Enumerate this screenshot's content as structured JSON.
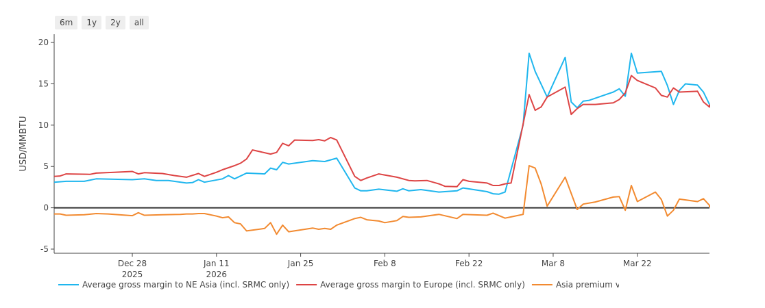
{
  "range_selector": {
    "buttons": [
      "6m",
      "1y",
      "2y",
      "all"
    ]
  },
  "chart_data": {
    "type": "line",
    "title": "",
    "xlabel": "",
    "ylabel": "USD/MMBTU",
    "x_tick_labels": [
      {
        "date": "2025-12-28",
        "label": "Dec 28",
        "sublabel": "2025"
      },
      {
        "date": "2026-01-11",
        "label": "Jan 11",
        "sublabel": "2026"
      },
      {
        "date": "2026-01-25",
        "label": "Jan 25",
        "sublabel": ""
      },
      {
        "date": "2026-02-08",
        "label": "Feb 8",
        "sublabel": ""
      },
      {
        "date": "2026-02-22",
        "label": "Feb 22",
        "sublabel": ""
      },
      {
        "date": "2026-03-08",
        "label": "Mar 8",
        "sublabel": ""
      },
      {
        "date": "2026-03-22",
        "label": "Mar 22",
        "sublabel": ""
      }
    ],
    "y_ticks": [
      -5,
      0,
      5,
      10,
      15,
      20
    ],
    "xlim": [
      "2025-12-15",
      "2026-04-03"
    ],
    "ylim": [
      -5.5,
      21
    ],
    "zero_line": true,
    "grid": false,
    "legend_position": "bottom",
    "series": [
      {
        "name": "Average gross margin to NE Asia (incl. SRMC only)",
        "color": "#1fb6ee",
        "points": [
          [
            "2025-12-15",
            3.1
          ],
          [
            "2025-12-17",
            3.2
          ],
          [
            "2025-12-20",
            3.2
          ],
          [
            "2025-12-22",
            3.5
          ],
          [
            "2025-12-25",
            3.45
          ],
          [
            "2025-12-28",
            3.4
          ],
          [
            "2025-12-30",
            3.5
          ],
          [
            "2026-01-01",
            3.3
          ],
          [
            "2026-01-03",
            3.3
          ],
          [
            "2026-01-06",
            3.0
          ],
          [
            "2026-01-07",
            3.05
          ],
          [
            "2026-01-08",
            3.4
          ],
          [
            "2026-01-09",
            3.1
          ],
          [
            "2026-01-12",
            3.5
          ],
          [
            "2026-01-13",
            3.9
          ],
          [
            "2026-01-14",
            3.5
          ],
          [
            "2026-01-16",
            4.2
          ],
          [
            "2026-01-19",
            4.1
          ],
          [
            "2026-01-20",
            4.8
          ],
          [
            "2026-01-21",
            4.6
          ],
          [
            "2026-01-22",
            5.5
          ],
          [
            "2026-01-23",
            5.3
          ],
          [
            "2026-01-27",
            5.7
          ],
          [
            "2026-01-29",
            5.6
          ],
          [
            "2026-01-31",
            6.0
          ],
          [
            "2026-02-03",
            2.4
          ],
          [
            "2026-02-04",
            2.05
          ],
          [
            "2026-02-05",
            2.05
          ],
          [
            "2026-02-07",
            2.25
          ],
          [
            "2026-02-10",
            2.0
          ],
          [
            "2026-02-11",
            2.3
          ],
          [
            "2026-02-12",
            2.05
          ],
          [
            "2026-02-14",
            2.2
          ],
          [
            "2026-02-17",
            1.9
          ],
          [
            "2026-02-20",
            2.05
          ],
          [
            "2026-02-21",
            2.4
          ],
          [
            "2026-02-25",
            1.95
          ],
          [
            "2026-02-26",
            1.7
          ],
          [
            "2026-02-27",
            1.65
          ],
          [
            "2026-02-28",
            1.9
          ],
          [
            "2026-03-03",
            10.0
          ],
          [
            "2026-03-04",
            18.7
          ],
          [
            "2026-03-05",
            16.5
          ],
          [
            "2026-03-07",
            13.4
          ],
          [
            "2026-03-10",
            18.2
          ],
          [
            "2026-03-11",
            12.8
          ],
          [
            "2026-03-12",
            12.1
          ],
          [
            "2026-03-13",
            12.9
          ],
          [
            "2026-03-14",
            13.0
          ],
          [
            "2026-03-18",
            14.0
          ],
          [
            "2026-03-19",
            14.4
          ],
          [
            "2026-03-20",
            13.5
          ],
          [
            "2026-03-21",
            18.7
          ],
          [
            "2026-03-22",
            16.3
          ],
          [
            "2026-03-26",
            16.5
          ],
          [
            "2026-03-27",
            14.8
          ],
          [
            "2026-03-28",
            12.5
          ],
          [
            "2026-03-29",
            14.2
          ],
          [
            "2026-03-30",
            15.0
          ],
          [
            "2026-04-01",
            14.85
          ],
          [
            "2026-04-02",
            14.0
          ],
          [
            "2026-04-03",
            12.5
          ]
        ]
      },
      {
        "name": "Average gross margin to Europe (incl. SRMC only)",
        "color": "#dd4444",
        "points": [
          [
            "2025-12-15",
            3.8
          ],
          [
            "2025-12-16",
            3.85
          ],
          [
            "2025-12-17",
            4.1
          ],
          [
            "2025-12-21",
            4.05
          ],
          [
            "2025-12-22",
            4.2
          ],
          [
            "2025-12-25",
            4.3
          ],
          [
            "2025-12-28",
            4.4
          ],
          [
            "2025-12-29",
            4.1
          ],
          [
            "2025-12-30",
            4.25
          ],
          [
            "2026-01-02",
            4.15
          ],
          [
            "2026-01-04",
            3.9
          ],
          [
            "2026-01-06",
            3.7
          ],
          [
            "2026-01-08",
            4.15
          ],
          [
            "2026-01-09",
            3.8
          ],
          [
            "2026-01-11",
            4.3
          ],
          [
            "2026-01-12",
            4.6
          ],
          [
            "2026-01-14",
            5.1
          ],
          [
            "2026-01-15",
            5.4
          ],
          [
            "2026-01-16",
            5.9
          ],
          [
            "2026-01-17",
            7.0
          ],
          [
            "2026-01-20",
            6.5
          ],
          [
            "2026-01-21",
            6.7
          ],
          [
            "2026-01-22",
            7.8
          ],
          [
            "2026-01-23",
            7.5
          ],
          [
            "2026-01-24",
            8.2
          ],
          [
            "2026-01-27",
            8.15
          ],
          [
            "2026-01-28",
            8.25
          ],
          [
            "2026-01-29",
            8.1
          ],
          [
            "2026-01-30",
            8.5
          ],
          [
            "2026-01-31",
            8.2
          ],
          [
            "2026-02-03",
            3.8
          ],
          [
            "2026-02-04",
            3.3
          ],
          [
            "2026-02-05",
            3.6
          ],
          [
            "2026-02-07",
            4.1
          ],
          [
            "2026-02-10",
            3.7
          ],
          [
            "2026-02-12",
            3.3
          ],
          [
            "2026-02-13",
            3.25
          ],
          [
            "2026-02-15",
            3.3
          ],
          [
            "2026-02-17",
            2.9
          ],
          [
            "2026-02-18",
            2.6
          ],
          [
            "2026-02-20",
            2.55
          ],
          [
            "2026-02-21",
            3.4
          ],
          [
            "2026-02-22",
            3.2
          ],
          [
            "2026-02-25",
            3.0
          ],
          [
            "2026-02-26",
            2.7
          ],
          [
            "2026-02-27",
            2.7
          ],
          [
            "2026-02-28",
            2.9
          ],
          [
            "2026-03-01",
            3.0
          ],
          [
            "2026-03-04",
            13.7
          ],
          [
            "2026-03-05",
            11.8
          ],
          [
            "2026-03-06",
            12.2
          ],
          [
            "2026-03-07",
            13.4
          ],
          [
            "2026-03-10",
            14.6
          ],
          [
            "2026-03-11",
            11.3
          ],
          [
            "2026-03-12",
            12.0
          ],
          [
            "2026-03-13",
            12.5
          ],
          [
            "2026-03-15",
            12.5
          ],
          [
            "2026-03-18",
            12.7
          ],
          [
            "2026-03-19",
            13.1
          ],
          [
            "2026-03-20",
            13.9
          ],
          [
            "2026-03-21",
            16.0
          ],
          [
            "2026-03-22",
            15.4
          ],
          [
            "2026-03-25",
            14.5
          ],
          [
            "2026-03-26",
            13.6
          ],
          [
            "2026-03-27",
            13.4
          ],
          [
            "2026-03-28",
            14.5
          ],
          [
            "2026-03-29",
            14.0
          ],
          [
            "2026-04-01",
            14.1
          ],
          [
            "2026-04-02",
            12.8
          ],
          [
            "2026-04-03",
            12.2
          ],
          [
            "2026-04-03",
            12.5
          ]
        ]
      },
      {
        "name": "Asia premium vs Europe",
        "color": "#f28a30",
        "points": [
          [
            "2025-12-15",
            -0.75
          ],
          [
            "2025-12-16",
            -0.75
          ],
          [
            "2025-12-17",
            -0.9
          ],
          [
            "2025-12-20",
            -0.85
          ],
          [
            "2025-12-22",
            -0.7
          ],
          [
            "2025-12-24",
            -0.75
          ],
          [
            "2025-12-28",
            -0.95
          ],
          [
            "2025-12-29",
            -0.6
          ],
          [
            "2025-12-30",
            -0.9
          ],
          [
            "2026-01-02",
            -0.85
          ],
          [
            "2026-01-05",
            -0.8
          ],
          [
            "2026-01-06",
            -0.75
          ],
          [
            "2026-01-07",
            -0.75
          ],
          [
            "2026-01-08",
            -0.7
          ],
          [
            "2026-01-09",
            -0.7
          ],
          [
            "2026-01-11",
            -1.0
          ],
          [
            "2026-01-12",
            -1.2
          ],
          [
            "2026-01-13",
            -1.1
          ],
          [
            "2026-01-14",
            -1.8
          ],
          [
            "2026-01-15",
            -1.95
          ],
          [
            "2026-01-16",
            -2.8
          ],
          [
            "2026-01-19",
            -2.5
          ],
          [
            "2026-01-20",
            -1.8
          ],
          [
            "2026-01-21",
            -3.2
          ],
          [
            "2026-01-22",
            -2.1
          ],
          [
            "2026-01-23",
            -2.9
          ],
          [
            "2026-01-27",
            -2.45
          ],
          [
            "2026-01-28",
            -2.6
          ],
          [
            "2026-01-29",
            -2.5
          ],
          [
            "2026-01-30",
            -2.6
          ],
          [
            "2026-01-31",
            -2.1
          ],
          [
            "2026-02-03",
            -1.3
          ],
          [
            "2026-02-04",
            -1.15
          ],
          [
            "2026-02-05",
            -1.45
          ],
          [
            "2026-02-07",
            -1.6
          ],
          [
            "2026-02-08",
            -1.8
          ],
          [
            "2026-02-10",
            -1.55
          ],
          [
            "2026-02-11",
            -1.05
          ],
          [
            "2026-02-12",
            -1.15
          ],
          [
            "2026-02-14",
            -1.1
          ],
          [
            "2026-02-17",
            -0.8
          ],
          [
            "2026-02-20",
            -1.3
          ],
          [
            "2026-02-21",
            -0.8
          ],
          [
            "2026-02-25",
            -0.9
          ],
          [
            "2026-02-26",
            -0.65
          ],
          [
            "2026-02-28",
            -1.25
          ],
          [
            "2026-03-01",
            -1.1
          ],
          [
            "2026-03-03",
            -0.8
          ],
          [
            "2026-03-04",
            5.1
          ],
          [
            "2026-03-05",
            4.8
          ],
          [
            "2026-03-06",
            2.9
          ],
          [
            "2026-03-07",
            0.2
          ],
          [
            "2026-03-10",
            3.7
          ],
          [
            "2026-03-12",
            -0.2
          ],
          [
            "2026-03-13",
            0.45
          ],
          [
            "2026-03-15",
            0.7
          ],
          [
            "2026-03-18",
            1.3
          ],
          [
            "2026-03-19",
            1.35
          ],
          [
            "2026-03-20",
            -0.3
          ],
          [
            "2026-03-21",
            2.7
          ],
          [
            "2026-03-22",
            0.75
          ],
          [
            "2026-03-25",
            1.9
          ],
          [
            "2026-03-26",
            1.0
          ],
          [
            "2026-03-27",
            -1.0
          ],
          [
            "2026-03-28",
            -0.3
          ],
          [
            "2026-03-29",
            1.05
          ],
          [
            "2026-04-01",
            0.75
          ],
          [
            "2026-04-02",
            1.1
          ],
          [
            "2026-04-03",
            0.3
          ],
          [
            "2026-04-03",
            0.05
          ]
        ]
      }
    ]
  }
}
